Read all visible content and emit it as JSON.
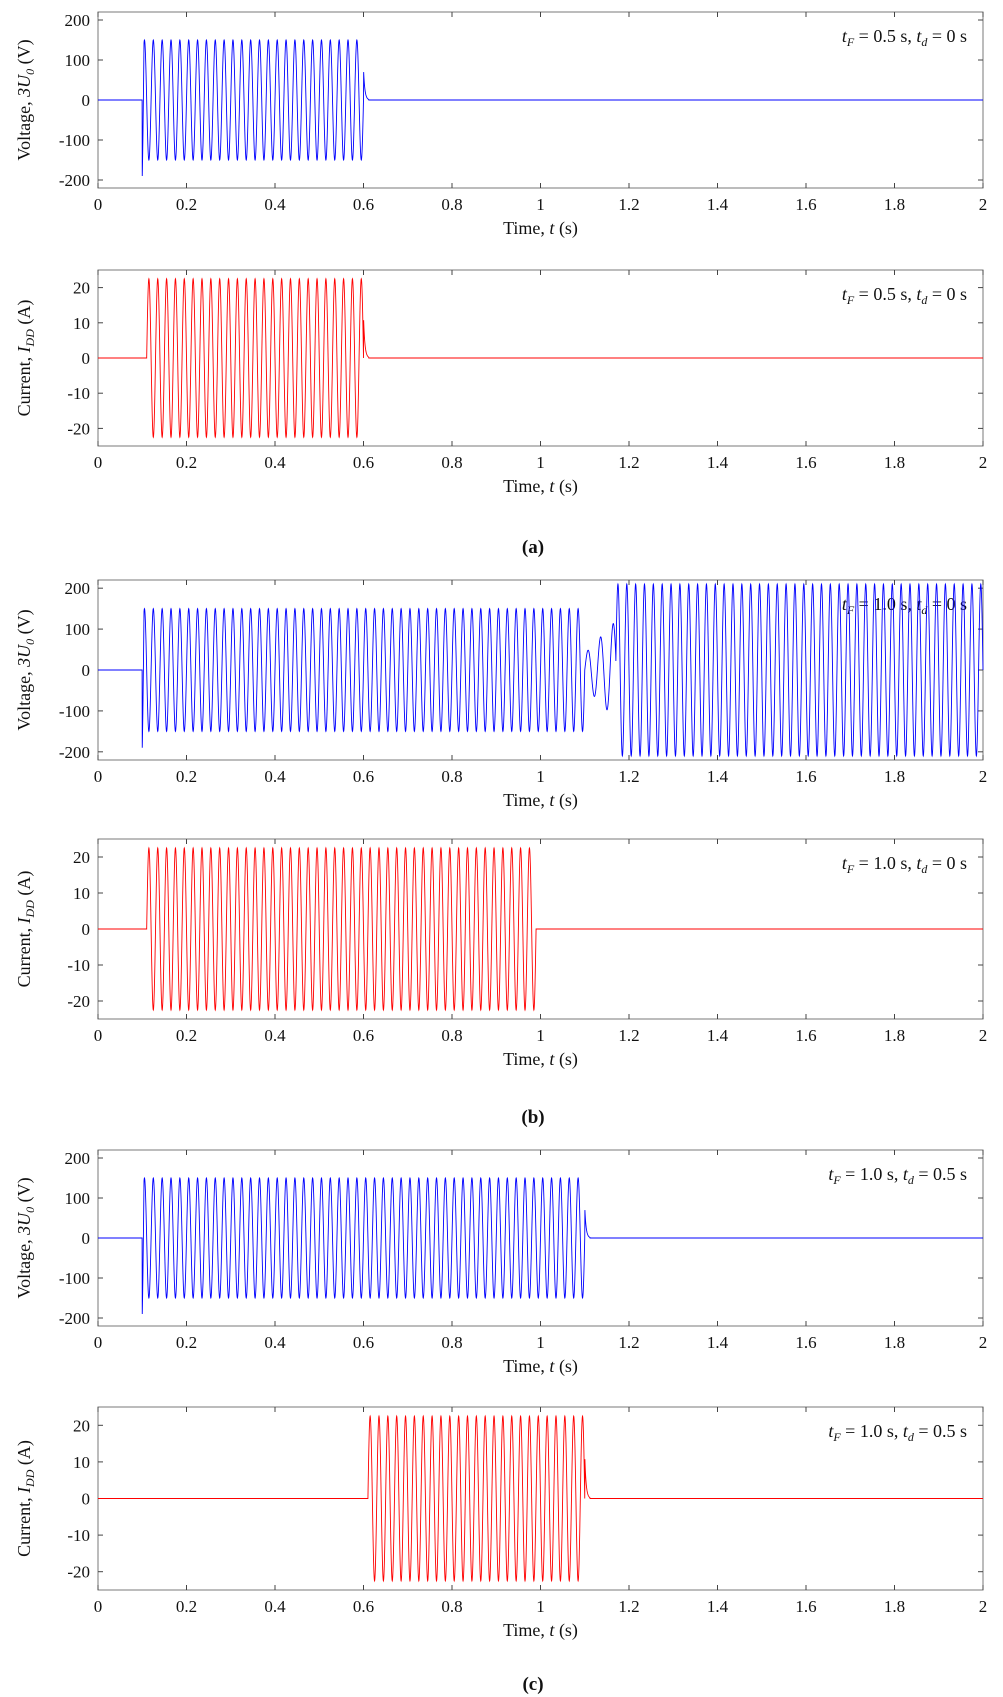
{
  "chart_data": [
    {
      "type": "line",
      "group": "a",
      "quantity": "voltage",
      "ylabel": "Voltage, 3U",
      "ylabel_sub": "0",
      "ylabel_unit": "(V)",
      "xlabel": "Time, ",
      "xlabel_var": "t",
      "xlabel_unit": "(s)",
      "xlim": [
        0,
        2
      ],
      "ylim": [
        -220,
        220
      ],
      "xticks": [
        "0",
        "0.2",
        "0.4",
        "0.6",
        "0.8",
        "1",
        "1.2",
        "1.4",
        "1.6",
        "1.8",
        "2"
      ],
      "yticks": [
        "200",
        "100",
        "0",
        "-100",
        "-200"
      ],
      "yticks_values": [
        200,
        100,
        0,
        -100,
        -200
      ],
      "annotation": {
        "tF": "t",
        "tF_sub": "F",
        "tF_text": " = 0.5 s, ",
        "td": "t",
        "td_sub": "d",
        "td_text": " = 0 s"
      },
      "color": "#0000ff",
      "segments": [
        {
          "t_start": 0.1,
          "t_end": 0.6,
          "amplitude": 150,
          "frequency_hz": 50,
          "initial_spike": -190,
          "tail_spike": 78
        },
        {
          "t_start": 1.1,
          "t_end": 2.0,
          "amplitude": 0,
          "frequency_hz": 50
        }
      ],
      "series": [
        {
          "values_summary": "50 Hz oscillation ±150 V from 0.1 s to 0.6 s, zero afterwards"
        }
      ]
    },
    {
      "type": "line",
      "group": "a",
      "quantity": "current",
      "ylabel": "Current, I",
      "ylabel_sub": "DD",
      "ylabel_unit": "(A)",
      "xlabel": "Time, ",
      "xlabel_var": "t",
      "xlabel_unit": "(s)",
      "xlim": [
        0,
        2
      ],
      "ylim": [
        -25,
        25
      ],
      "xticks": [
        "0",
        "0.2",
        "0.4",
        "0.6",
        "0.8",
        "1",
        "1.2",
        "1.4",
        "1.6",
        "1.8",
        "2"
      ],
      "yticks": [
        "20",
        "10",
        "0",
        "-10",
        "-20"
      ],
      "yticks_values": [
        20,
        10,
        0,
        -10,
        -20
      ],
      "annotation": {
        "tF": "t",
        "tF_sub": "F",
        "tF_text": " = 0.5 s, ",
        "td": "t",
        "td_sub": "d",
        "td_text": " = 0 s"
      },
      "color": "#ff0000",
      "segments": [
        {
          "t_start": 0.11,
          "t_end": 0.6,
          "amplitude": 22.5,
          "frequency_hz": 50,
          "initial_spike": 0,
          "tail_spike": 12
        }
      ],
      "series": [
        {
          "values_summary": "50 Hz oscillation ±22.5 A from 0.11 s to 0.6 s, zero afterwards"
        }
      ]
    },
    {
      "type": "line",
      "group": "b",
      "quantity": "voltage",
      "ylabel": "Voltage, 3U",
      "ylabel_sub": "0",
      "ylabel_unit": "(V)",
      "xlabel": "Time, ",
      "xlabel_var": "t",
      "xlabel_unit": "(s)",
      "xlim": [
        0,
        2
      ],
      "ylim": [
        -220,
        220
      ],
      "xticks": [
        "0",
        "0.2",
        "0.4",
        "0.6",
        "0.8",
        "1",
        "1.2",
        "1.4",
        "1.6",
        "1.8",
        "2"
      ],
      "yticks": [
        "200",
        "100",
        "0",
        "-100",
        "-200"
      ],
      "yticks_values": [
        200,
        100,
        0,
        -100,
        -200
      ],
      "annotation": {
        "tF": "t",
        "tF_sub": "F",
        "tF_text": " = 1.0 s, ",
        "td": "t",
        "td_sub": "d",
        "td_text": " = 0 s"
      },
      "color": "#0000ff",
      "segments": [
        {
          "t_start": 0.1,
          "t_end": 1.1,
          "amplitude": 150,
          "frequency_hz": 50,
          "initial_spike": -190,
          "tail_spike": 0
        },
        {
          "t_start": 1.1,
          "t_end": 1.17,
          "amplitude": 80,
          "frequency_hz": 35,
          "transition": true
        },
        {
          "t_start": 1.17,
          "t_end": 2.0,
          "amplitude": 210,
          "frequency_hz": 50
        }
      ],
      "series": [
        {
          "values_summary": "±150 V 50 Hz from 0.1 s to 1.1 s, transition, then ±210 V 50 Hz to 2 s"
        }
      ]
    },
    {
      "type": "line",
      "group": "b",
      "quantity": "current",
      "ylabel": "Current, I",
      "ylabel_sub": "DD",
      "ylabel_unit": "(A)",
      "xlabel": "Time, ",
      "xlabel_var": "t",
      "xlabel_unit": "(s)",
      "xlim": [
        0,
        2
      ],
      "ylim": [
        -25,
        25
      ],
      "xticks": [
        "0",
        "0.2",
        "0.4",
        "0.6",
        "0.8",
        "1",
        "1.2",
        "1.4",
        "1.6",
        "1.8",
        "2"
      ],
      "yticks": [
        "20",
        "10",
        "0",
        "-10",
        "-20"
      ],
      "yticks_values": [
        20,
        10,
        0,
        -10,
        -20
      ],
      "annotation": {
        "tF": "t",
        "tF_sub": "F",
        "tF_text": " = 1.0 s, ",
        "td": "t",
        "td_sub": "d",
        "td_text": " = 0 s"
      },
      "color": "#ff0000",
      "segments": [
        {
          "t_start": 0.11,
          "t_end": 0.99,
          "amplitude": 22.5,
          "frequency_hz": 50,
          "initial_spike": 0,
          "tail_spike": 0
        }
      ],
      "series": [
        {
          "values_summary": "50 Hz oscillation ±22.5 A from 0.11 s to 1.0 s, zero afterwards"
        }
      ]
    },
    {
      "type": "line",
      "group": "c",
      "quantity": "voltage",
      "ylabel": "Voltage, 3U",
      "ylabel_sub": "0",
      "ylabel_unit": "(V)",
      "xlabel": "Time, ",
      "xlabel_var": "t",
      "xlabel_unit": "(s)",
      "xlim": [
        0,
        2
      ],
      "ylim": [
        -220,
        220
      ],
      "xticks": [
        "0",
        "0.2",
        "0.4",
        "0.6",
        "0.8",
        "1",
        "1.2",
        "1.4",
        "1.6",
        "1.8",
        "2"
      ],
      "yticks": [
        "200",
        "100",
        "0",
        "-100",
        "-200"
      ],
      "yticks_values": [
        200,
        100,
        0,
        -100,
        -200
      ],
      "annotation": {
        "tF": "t",
        "tF_sub": "F",
        "tF_text": " = 1.0 s, ",
        "td": "t",
        "td_sub": "d",
        "td_text": " = 0.5 s"
      },
      "color": "#0000ff",
      "segments": [
        {
          "t_start": 0.1,
          "t_end": 1.1,
          "amplitude": 150,
          "frequency_hz": 50,
          "initial_spike": -190,
          "tail_spike": 78
        }
      ],
      "series": [
        {
          "values_summary": "50 Hz oscillation ±150 V from 0.1 s to 1.1 s, zero afterwards"
        }
      ]
    },
    {
      "type": "line",
      "group": "c",
      "quantity": "current",
      "ylabel": "Current, I",
      "ylabel_sub": "DD",
      "ylabel_unit": "(A)",
      "xlabel": "Time, ",
      "xlabel_var": "t",
      "xlabel_unit": "(s)",
      "xlim": [
        0,
        2
      ],
      "ylim": [
        -25,
        25
      ],
      "xticks": [
        "0",
        "0.2",
        "0.4",
        "0.6",
        "0.8",
        "1",
        "1.2",
        "1.4",
        "1.6",
        "1.8",
        "2"
      ],
      "yticks": [
        "20",
        "10",
        "0",
        "-10",
        "-20"
      ],
      "yticks_values": [
        20,
        10,
        0,
        -10,
        -20
      ],
      "annotation": {
        "tF": "t",
        "tF_sub": "F",
        "tF_text": " = 1.0 s, ",
        "td": "t",
        "td_sub": "d",
        "td_text": " = 0.5 s"
      },
      "color": "#ff0000",
      "segments": [
        {
          "t_start": 0.61,
          "t_end": 1.1,
          "amplitude": 22.5,
          "frequency_hz": 50,
          "initial_spike": 0,
          "tail_spike": 12
        }
      ],
      "series": [
        {
          "values_summary": "50 Hz oscillation ±22.5 A from 0.61 s to 1.1 s, zero elsewhere"
        }
      ]
    }
  ],
  "captions": {
    "a": "(a)",
    "b": "(b)",
    "c": "(c)"
  }
}
